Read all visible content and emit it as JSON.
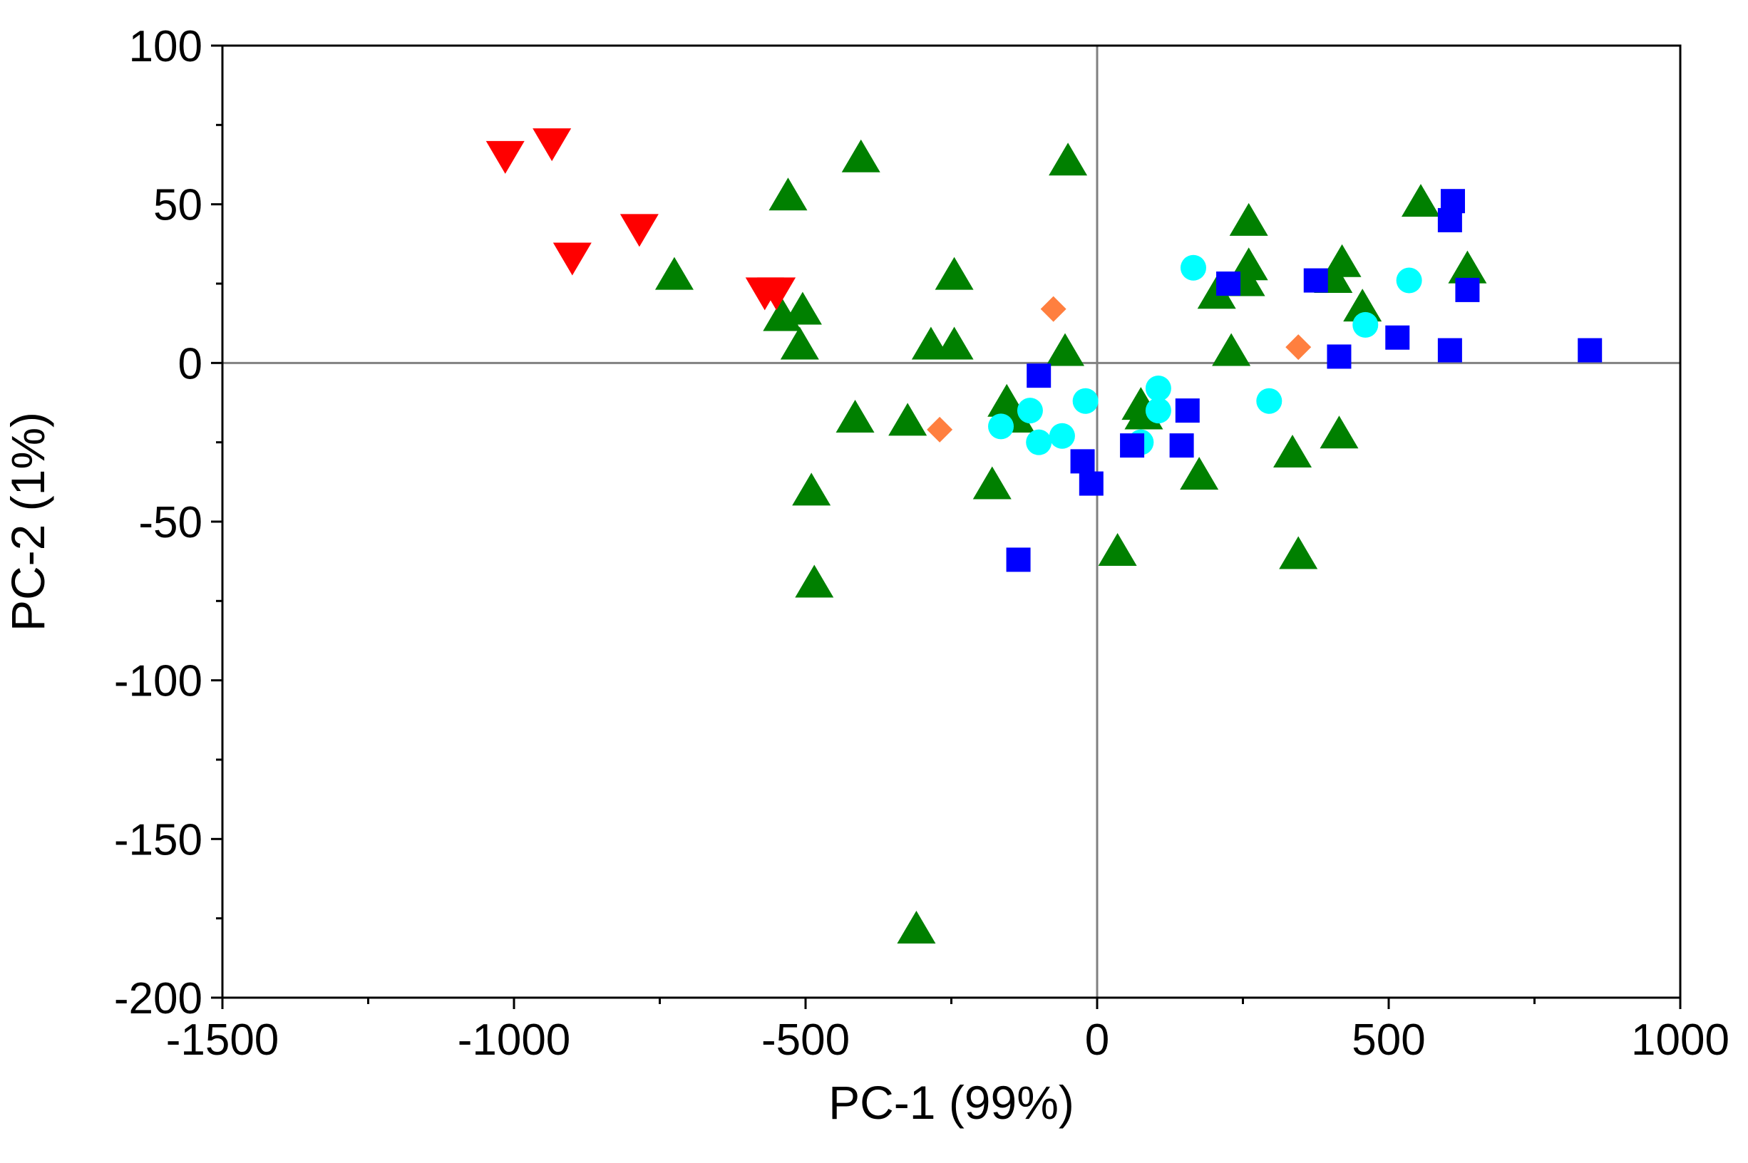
{
  "chart_data": {
    "type": "scatter",
    "title": "",
    "xlabel": "PC-1 (99%)",
    "ylabel": "PC-2 (1%)",
    "xlim": [
      -1500,
      1000
    ],
    "ylim": [
      -200,
      100
    ],
    "xticks": [
      -1500,
      -1000,
      -500,
      0,
      500,
      1000
    ],
    "yticks": [
      -200,
      -150,
      -100,
      -50,
      0,
      50,
      100
    ],
    "xtick_labels": [
      "-1500",
      "-1000",
      "-500",
      "0",
      "500",
      "1000"
    ],
    "ytick_labels": [
      "-200",
      "-150",
      "-100",
      "-50",
      "0",
      "50",
      "100"
    ],
    "reference_lines": {
      "x": 0,
      "y": 0
    },
    "grid": false,
    "legend": "none",
    "series": [
      {
        "name": "red-down-triangles",
        "marker": "triangle-down",
        "color": "#ff0000",
        "points": [
          [
            -1015,
            66
          ],
          [
            -935,
            70
          ],
          [
            -900,
            34
          ],
          [
            -785,
            43
          ],
          [
            -570,
            23
          ],
          [
            -550,
            23
          ]
        ]
      },
      {
        "name": "green-up-triangles",
        "marker": "triangle-up",
        "color": "#008000",
        "points": [
          [
            -725,
            27
          ],
          [
            -530,
            52
          ],
          [
            -540,
            14
          ],
          [
            -505,
            16
          ],
          [
            -510,
            5
          ],
          [
            -405,
            64
          ],
          [
            -415,
            -18
          ],
          [
            -325,
            -19
          ],
          [
            -285,
            5
          ],
          [
            -245,
            27
          ],
          [
            -245,
            5
          ],
          [
            -50,
            63
          ],
          [
            -55,
            3
          ],
          [
            -155,
            -13
          ],
          [
            -140,
            -18
          ],
          [
            -180,
            -39
          ],
          [
            -490,
            -41
          ],
          [
            -485,
            -70
          ],
          [
            -310,
            -179
          ],
          [
            35,
            -60
          ],
          [
            75,
            -14
          ],
          [
            80,
            -17
          ],
          [
            175,
            -36
          ],
          [
            205,
            21
          ],
          [
            260,
            44
          ],
          [
            260,
            30
          ],
          [
            255,
            25
          ],
          [
            230,
            3
          ],
          [
            335,
            -29
          ],
          [
            345,
            -61
          ],
          [
            405,
            26
          ],
          [
            420,
            31
          ],
          [
            415,
            -23
          ],
          [
            455,
            17
          ],
          [
            555,
            50
          ],
          [
            635,
            29
          ]
        ]
      },
      {
        "name": "blue-squares",
        "marker": "square",
        "color": "#0000ff",
        "points": [
          [
            -100,
            -4
          ],
          [
            -135,
            -62
          ],
          [
            -25,
            -31
          ],
          [
            -10,
            -38
          ],
          [
            60,
            -26
          ],
          [
            145,
            -26
          ],
          [
            155,
            -15
          ],
          [
            225,
            25
          ],
          [
            375,
            26
          ],
          [
            415,
            2
          ],
          [
            515,
            8
          ],
          [
            605,
            45
          ],
          [
            610,
            51
          ],
          [
            605,
            4
          ],
          [
            635,
            23
          ],
          [
            845,
            4
          ]
        ]
      },
      {
        "name": "cyan-circles",
        "marker": "circle",
        "color": "#00ffff",
        "points": [
          [
            -165,
            -20
          ],
          [
            -115,
            -15
          ],
          [
            -100,
            -25
          ],
          [
            -60,
            -23
          ],
          [
            -20,
            -12
          ],
          [
            75,
            -25
          ],
          [
            105,
            -15
          ],
          [
            105,
            -8
          ],
          [
            165,
            30
          ],
          [
            295,
            -12
          ],
          [
            460,
            12
          ],
          [
            535,
            26
          ]
        ]
      },
      {
        "name": "orange-diamonds",
        "marker": "diamond",
        "color": "#ff7f3f",
        "points": [
          [
            -270,
            -21
          ],
          [
            -75,
            17
          ],
          [
            345,
            5
          ]
        ]
      }
    ]
  }
}
